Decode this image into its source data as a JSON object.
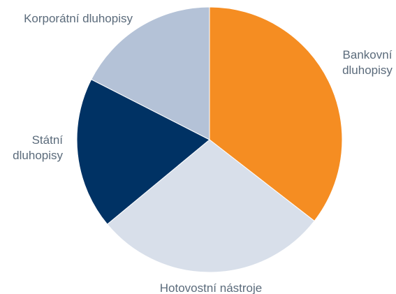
{
  "chart_data": {
    "type": "pie",
    "title": "",
    "legend": "none",
    "slices": [
      {
        "label": "Bankovní dluhopisy",
        "label_lines": [
          "Bankovní",
          "dluhopisy"
        ],
        "value": 35.5,
        "color": "#f58d22"
      },
      {
        "label": "Hotovostní nástroje",
        "label_lines": [
          "Hotovostní nástroje"
        ],
        "value": 28.5,
        "color": "#d8dfea"
      },
      {
        "label": "Státní dluhopisy",
        "label_lines": [
          "Státní",
          "dluhopisy"
        ],
        "value": 18.5,
        "color": "#003264"
      },
      {
        "label": "Korporátní dluhopisy",
        "label_lines": [
          "Korporátní dluhopisy"
        ],
        "value": 17.5,
        "color": "#b4c2d7"
      }
    ]
  }
}
